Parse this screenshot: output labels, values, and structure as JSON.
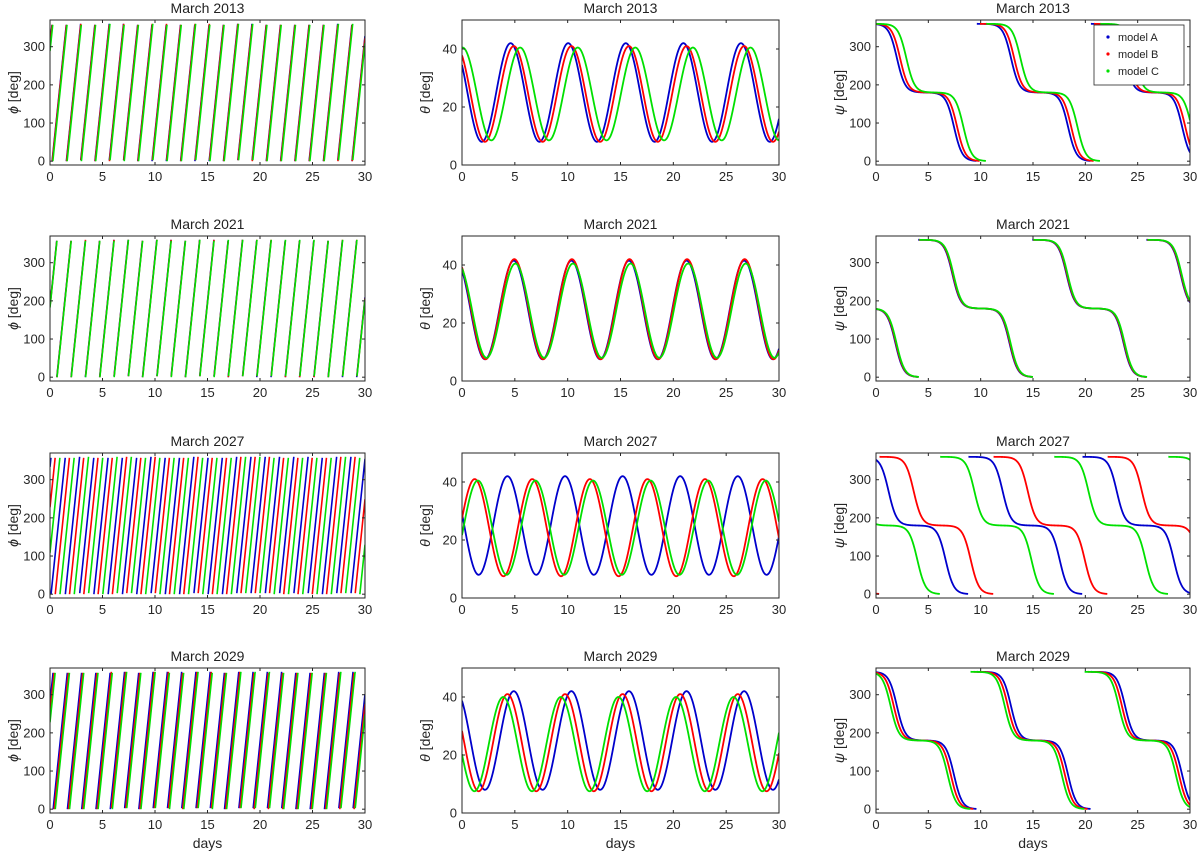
{
  "figure": {
    "x_label": "days",
    "legend_location": "top-right of the top-right panel",
    "colors": {
      "model A": "#0000cc",
      "model B": "#ff0000",
      "model C": "#00e000"
    }
  },
  "chart_data": [
    {
      "type": "line",
      "title": "March 2013",
      "variable": "phi",
      "ylabel": "[deg]",
      "ylabel_symbol": "ϕ",
      "xlim": [
        0,
        30
      ],
      "ylim": [
        -10,
        370
      ],
      "xticks": [
        0,
        5,
        10,
        15,
        20,
        25,
        30
      ],
      "yticks": [
        0,
        100,
        200,
        300
      ],
      "series": [
        {
          "name": "model A",
          "color": "#0000cc",
          "period_days": 1.36,
          "phase_days": 0.2
        },
        {
          "name": "model B",
          "color": "#ff0000",
          "period_days": 1.36,
          "phase_days": 0.22
        },
        {
          "name": "model C",
          "color": "#00e000",
          "period_days": 1.36,
          "phase_days": 0.27
        }
      ]
    },
    {
      "type": "line",
      "title": "March 2013",
      "variable": "theta",
      "ylabel": "[deg]",
      "ylabel_symbol": "θ",
      "xlim": [
        0,
        30
      ],
      "ylim": [
        0,
        50
      ],
      "xticks": [
        0,
        5,
        10,
        15,
        20,
        25,
        30
      ],
      "yticks": [
        0,
        20,
        40
      ],
      "series": [
        {
          "name": "model A",
          "color": "#0000cc",
          "min": 8,
          "max": 42,
          "period_days": 5.45,
          "peak_day": 4.6
        },
        {
          "name": "model B",
          "color": "#ff0000",
          "min": 8,
          "max": 41,
          "period_days": 5.45,
          "peak_day": 4.9
        },
        {
          "name": "model C",
          "color": "#00e000",
          "min": 8.5,
          "max": 40.5,
          "period_days": 5.45,
          "peak_day": 5.5
        }
      ]
    },
    {
      "type": "line",
      "title": "March 2013",
      "variable": "psi",
      "ylabel": "[deg]",
      "ylabel_symbol": "ψ",
      "xlim": [
        0,
        30
      ],
      "ylim": [
        -10,
        370
      ],
      "xticks": [
        0,
        5,
        10,
        15,
        20,
        25,
        30
      ],
      "yticks": [
        0,
        100,
        200,
        300
      ],
      "legend": [
        "model A",
        "model B",
        "model C"
      ],
      "series": [
        {
          "name": "model A",
          "color": "#0000cc",
          "period_days": 10.9,
          "first_drop_day": 2.0
        },
        {
          "name": "model B",
          "color": "#ff0000",
          "period_days": 10.9,
          "first_drop_day": 2.3
        },
        {
          "name": "model C",
          "color": "#00e000",
          "period_days": 10.9,
          "first_drop_day": 2.9
        }
      ]
    },
    {
      "type": "line",
      "title": "March 2021",
      "variable": "phi",
      "ylabel": "[deg]",
      "ylabel_symbol": "ϕ",
      "xlim": [
        0,
        30
      ],
      "ylim": [
        -10,
        370
      ],
      "xticks": [
        0,
        5,
        10,
        15,
        20,
        25,
        30
      ],
      "yticks": [
        0,
        100,
        200,
        300
      ],
      "series": [
        {
          "name": "model A",
          "color": "#0000cc",
          "period_days": 1.36,
          "phase_days": 0.65
        },
        {
          "name": "model B",
          "color": "#ff0000",
          "period_days": 1.36,
          "phase_days": 0.66
        },
        {
          "name": "model C",
          "color": "#00e000",
          "period_days": 1.36,
          "phase_days": 0.67
        }
      ]
    },
    {
      "type": "line",
      "title": "March 2021",
      "variable": "theta",
      "ylabel": "[deg]",
      "ylabel_symbol": "θ",
      "xlim": [
        0,
        30
      ],
      "ylim": [
        0,
        50
      ],
      "xticks": [
        0,
        5,
        10,
        15,
        20,
        25,
        30
      ],
      "yticks": [
        0,
        20,
        40
      ],
      "series": [
        {
          "name": "model A",
          "color": "#0000cc",
          "min": 7.5,
          "max": 41.5,
          "period_days": 5.45,
          "peak_day": 4.9
        },
        {
          "name": "model B",
          "color": "#ff0000",
          "min": 7.5,
          "max": 42,
          "period_days": 5.45,
          "peak_day": 4.95
        },
        {
          "name": "model C",
          "color": "#00e000",
          "min": 8,
          "max": 40.5,
          "period_days": 5.45,
          "peak_day": 5.05
        }
      ]
    },
    {
      "type": "line",
      "title": "March 2021",
      "variable": "psi",
      "ylabel": "[deg]",
      "ylabel_symbol": "ψ",
      "xlim": [
        0,
        30
      ],
      "ylim": [
        -10,
        370
      ],
      "xticks": [
        0,
        5,
        10,
        15,
        20,
        25,
        30
      ],
      "yticks": [
        0,
        100,
        200,
        300
      ],
      "series": [
        {
          "name": "model A",
          "color": "#0000cc",
          "period_days": 10.9,
          "first_drop_day": -3.6
        },
        {
          "name": "model B",
          "color": "#ff0000",
          "period_days": 10.9,
          "first_drop_day": -3.55
        },
        {
          "name": "model C",
          "color": "#00e000",
          "period_days": 10.9,
          "first_drop_day": -3.5
        }
      ]
    },
    {
      "type": "line",
      "title": "March 2027",
      "variable": "phi",
      "ylabel": "[deg]",
      "ylabel_symbol": "ϕ",
      "xlim": [
        0,
        30
      ],
      "ylim": [
        -10,
        370
      ],
      "xticks": [
        0,
        5,
        10,
        15,
        20,
        25,
        30
      ],
      "yticks": [
        0,
        100,
        200,
        300
      ],
      "series": [
        {
          "name": "model A",
          "color": "#0000cc",
          "period_days": 1.36,
          "phase_days": 0.1
        },
        {
          "name": "model B",
          "color": "#ff0000",
          "period_days": 1.36,
          "phase_days": 0.5
        },
        {
          "name": "model C",
          "color": "#00e000",
          "period_days": 1.36,
          "phase_days": 0.95
        }
      ]
    },
    {
      "type": "line",
      "title": "March 2027",
      "variable": "theta",
      "ylabel": "[deg]",
      "ylabel_symbol": "θ",
      "xlim": [
        0,
        30
      ],
      "ylim": [
        0,
        50
      ],
      "xticks": [
        0,
        5,
        10,
        15,
        20,
        25,
        30
      ],
      "yticks": [
        0,
        20,
        40
      ],
      "series": [
        {
          "name": "model A",
          "color": "#0000cc",
          "min": 8,
          "max": 42,
          "period_days": 5.45,
          "peak_day": 4.3
        },
        {
          "name": "model B",
          "color": "#ff0000",
          "min": 7.5,
          "max": 41,
          "period_days": 5.45,
          "peak_day": 1.2
        },
        {
          "name": "model C",
          "color": "#00e000",
          "min": 8,
          "max": 40.5,
          "period_days": 5.45,
          "peak_day": 1.5
        }
      ]
    },
    {
      "type": "line",
      "title": "March 2027",
      "variable": "psi",
      "ylabel": "[deg]",
      "ylabel_symbol": "ψ",
      "xlim": [
        0,
        30
      ],
      "ylim": [
        -10,
        370
      ],
      "xticks": [
        0,
        5,
        10,
        15,
        20,
        25,
        30
      ],
      "yticks": [
        0,
        100,
        200,
        300
      ],
      "series": [
        {
          "name": "model A",
          "color": "#0000cc",
          "period_days": 10.9,
          "first_drop_day": 1.2
        },
        {
          "name": "model B",
          "color": "#ff0000",
          "period_days": 10.9,
          "first_drop_day": 3.6
        },
        {
          "name": "model C",
          "color": "#00e000",
          "period_days": 10.9,
          "first_drop_day": -1.5
        }
      ]
    },
    {
      "type": "line",
      "title": "March 2029",
      "variable": "phi",
      "ylabel": "[deg]",
      "ylabel_symbol": "ϕ",
      "xlim": [
        0,
        30
      ],
      "ylim": [
        -10,
        370
      ],
      "xticks": [
        0,
        5,
        10,
        15,
        20,
        25,
        30
      ],
      "yticks": [
        0,
        100,
        200,
        300
      ],
      "series": [
        {
          "name": "model A",
          "color": "#0000cc",
          "period_days": 1.36,
          "phase_days": 0.3
        },
        {
          "name": "model B",
          "color": "#ff0000",
          "period_days": 1.36,
          "phase_days": 0.4
        },
        {
          "name": "model C",
          "color": "#00e000",
          "period_days": 1.36,
          "phase_days": 0.5
        }
      ]
    },
    {
      "type": "line",
      "title": "March 2029",
      "variable": "theta",
      "ylabel": "[deg]",
      "ylabel_symbol": "θ",
      "xlim": [
        0,
        30
      ],
      "ylim": [
        0,
        50
      ],
      "xticks": [
        0,
        5,
        10,
        15,
        20,
        25,
        30
      ],
      "yticks": [
        0,
        20,
        40
      ],
      "series": [
        {
          "name": "model A",
          "color": "#0000cc",
          "min": 8,
          "max": 42,
          "period_days": 5.45,
          "peak_day": 4.9
        },
        {
          "name": "model B",
          "color": "#ff0000",
          "min": 7.5,
          "max": 41,
          "period_days": 5.45,
          "peak_day": 4.3
        },
        {
          "name": "model C",
          "color": "#00e000",
          "min": 7.5,
          "max": 40,
          "period_days": 5.45,
          "peak_day": 3.9
        }
      ]
    },
    {
      "type": "line",
      "title": "March 2029",
      "variable": "psi",
      "ylabel": "[deg]",
      "ylabel_symbol": "ψ",
      "xlim": [
        0,
        30
      ],
      "ylim": [
        -10,
        370
      ],
      "xticks": [
        0,
        5,
        10,
        15,
        20,
        25,
        30
      ],
      "yticks": [
        0,
        100,
        200,
        300
      ],
      "series": [
        {
          "name": "model A",
          "color": "#0000cc",
          "period_days": 10.9,
          "first_drop_day": 2.0
        },
        {
          "name": "model B",
          "color": "#ff0000",
          "period_days": 10.9,
          "first_drop_day": 1.7
        },
        {
          "name": "model C",
          "color": "#00e000",
          "period_days": 10.9,
          "first_drop_day": 1.4
        }
      ]
    }
  ]
}
